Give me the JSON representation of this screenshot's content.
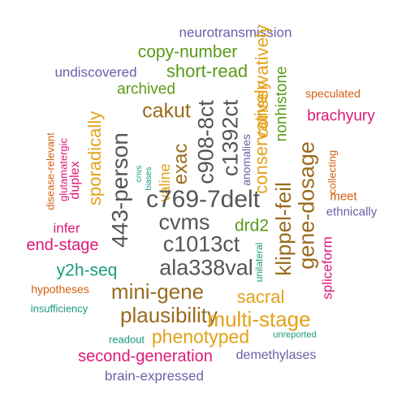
{
  "colors": {
    "gray": "#555555",
    "purple": "#6a5fa8",
    "green": "#5a9a1a",
    "brown": "#9a6b1c",
    "gold": "#e3a21a",
    "pink": "#dd1a78",
    "orange": "#d35f0f",
    "teal": "#1a9a7a"
  },
  "words": [
    {
      "text": "neurotransmission",
      "color": "purple"
    },
    {
      "text": "copy-number",
      "color": "green"
    },
    {
      "text": "undiscovered",
      "color": "purple"
    },
    {
      "text": "short-read",
      "color": "green"
    },
    {
      "text": "archived",
      "color": "green"
    },
    {
      "text": "conservatively",
      "color": "gold"
    },
    {
      "text": "nonhistone",
      "color": "green"
    },
    {
      "text": "speculated",
      "color": "orange"
    },
    {
      "text": "cakut",
      "color": "brown"
    },
    {
      "text": "c908-8ct",
      "color": "gray"
    },
    {
      "text": "c1392ct",
      "color": "gray"
    },
    {
      "text": "brachyury",
      "color": "pink"
    },
    {
      "text": "sporadically",
      "color": "gold"
    },
    {
      "text": "exac",
      "color": "brown"
    },
    {
      "text": "anomalies",
      "color": "purple"
    },
    {
      "text": "disease-relevant",
      "color": "orange"
    },
    {
      "text": "glutamatergic",
      "color": "pink"
    },
    {
      "text": "duplex",
      "color": "pink"
    },
    {
      "text": "cnvs",
      "color": "teal"
    },
    {
      "text": "biases",
      "color": "teal"
    },
    {
      "text": "valine",
      "color": "gold"
    },
    {
      "text": "443-person",
      "color": "gray"
    },
    {
      "text": "c769-7delt",
      "color": "gray"
    },
    {
      "text": "conservatively",
      "color": "gold"
    },
    {
      "text": "gene-dosage",
      "color": "brown"
    },
    {
      "text": "collecting",
      "color": "orange"
    },
    {
      "text": "meet",
      "color": "orange"
    },
    {
      "text": "ethnically",
      "color": "purple"
    },
    {
      "text": "infer",
      "color": "pink"
    },
    {
      "text": "cvms",
      "color": "gray"
    },
    {
      "text": "drd2",
      "color": "green"
    },
    {
      "text": "klippel-feil",
      "color": "brown"
    },
    {
      "text": "end-stage",
      "color": "pink"
    },
    {
      "text": "c1013ct",
      "color": "gray"
    },
    {
      "text": "y2h-seq",
      "color": "teal"
    },
    {
      "text": "ala338val",
      "color": "gray"
    },
    {
      "text": "unilateral",
      "color": "teal"
    },
    {
      "text": "spliceform",
      "color": "pink"
    },
    {
      "text": "mini-gene",
      "color": "brown"
    },
    {
      "text": "hypotheses",
      "color": "orange"
    },
    {
      "text": "sacral",
      "color": "gold"
    },
    {
      "text": "insufficiency",
      "color": "teal"
    },
    {
      "text": "plausibility",
      "color": "brown"
    },
    {
      "text": "multi-stage",
      "color": "gold"
    },
    {
      "text": "readout",
      "color": "teal"
    },
    {
      "text": "phenotyped",
      "color": "gold"
    },
    {
      "text": "unreported",
      "color": "teal"
    },
    {
      "text": "second-generation",
      "color": "pink"
    },
    {
      "text": "demethylases",
      "color": "purple"
    },
    {
      "text": "brain-expressed",
      "color": "purple"
    }
  ]
}
